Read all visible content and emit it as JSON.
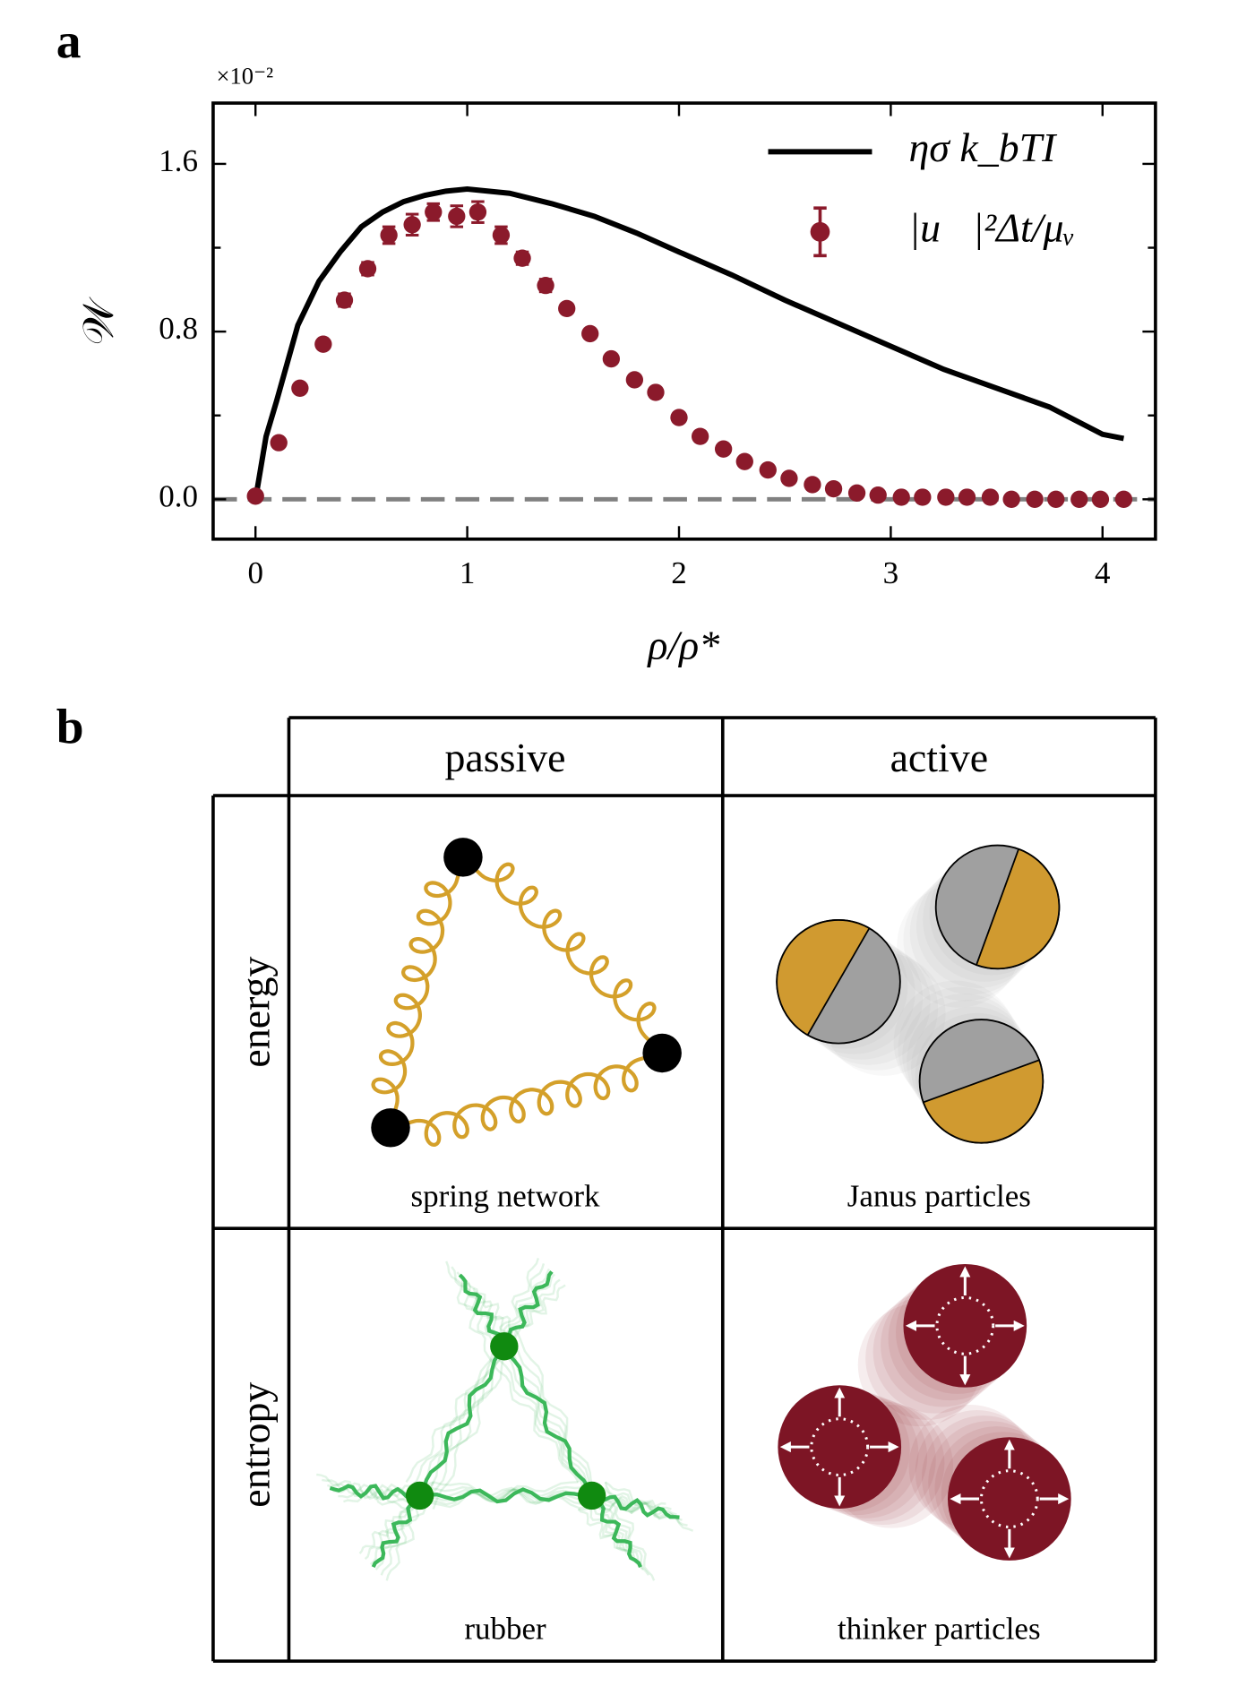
{
  "chart_data": {
    "type": "line",
    "panel_label": "a",
    "multiplier_label": "×10⁻²",
    "xlabel": "ρ/ρ*",
    "ylabel": "𝒲",
    "xlim": [
      -0.2,
      4.25
    ],
    "ylim": [
      -0.19,
      1.89
    ],
    "xticks": [
      0,
      1,
      2,
      3,
      4
    ],
    "yticks": [
      {
        "value": 0,
        "label": "0.0"
      },
      0.8,
      1.6
    ],
    "yminor": [
      0.4,
      1.2
    ],
    "legend": "upper right",
    "reference_line": {
      "value": 0,
      "color": "#808080",
      "style": "dashed"
    },
    "series": [
      {
        "name": "ησ k_bTI",
        "type": "line",
        "color": "#000000",
        "x": [
          0,
          0.05,
          0.1,
          0.2,
          0.3,
          0.4,
          0.5,
          0.6,
          0.7,
          0.8,
          0.9,
          1.0,
          1.2,
          1.4,
          1.6,
          1.8,
          2.0,
          2.25,
          2.5,
          2.75,
          3.0,
          3.25,
          3.5,
          3.75,
          4.0,
          4.1
        ],
        "values": [
          0,
          0.3,
          0.47,
          0.83,
          1.04,
          1.18,
          1.3,
          1.37,
          1.42,
          1.45,
          1.47,
          1.48,
          1.46,
          1.41,
          1.35,
          1.27,
          1.18,
          1.07,
          0.95,
          0.84,
          0.73,
          0.62,
          0.53,
          0.44,
          0.31,
          0.29
        ]
      },
      {
        "name": "|u⃗|²Δt/μᵥ",
        "type": "errorbar",
        "color": "#8b1a2b",
        "x": [
          0,
          0.11,
          0.21,
          0.32,
          0.42,
          0.53,
          0.63,
          0.74,
          0.84,
          0.95,
          1.05,
          1.16,
          1.26,
          1.37,
          1.47,
          1.58,
          1.68,
          1.79,
          1.89,
          2.0,
          2.1,
          2.21,
          2.31,
          2.42,
          2.52,
          2.63,
          2.73,
          2.84,
          2.94,
          3.05,
          3.15,
          3.26,
          3.36,
          3.47,
          3.57,
          3.68,
          3.78,
          3.89,
          3.99,
          4.1
        ],
        "values": [
          0.015,
          0.27,
          0.53,
          0.74,
          0.95,
          1.1,
          1.26,
          1.31,
          1.37,
          1.35,
          1.37,
          1.26,
          1.15,
          1.02,
          0.91,
          0.79,
          0.67,
          0.57,
          0.51,
          0.39,
          0.3,
          0.24,
          0.18,
          0.14,
          0.1,
          0.07,
          0.05,
          0.03,
          0.02,
          0.01,
          0.01,
          0.01,
          0.01,
          0.01,
          0,
          0,
          0,
          0,
          0,
          0
        ],
        "errors": [
          0.02,
          0.02,
          0.02,
          0.02,
          0.03,
          0.03,
          0.04,
          0.05,
          0.04,
          0.05,
          0.05,
          0.04,
          0.03,
          0.03,
          0.02,
          0.02,
          0.02,
          0.02,
          0.02,
          0.02,
          0.01,
          0.01,
          0.01,
          0.01,
          0.01,
          0.01,
          0.01,
          0.01,
          0.01,
          0.01,
          0.01,
          0.01,
          0.01,
          0.01,
          0.01,
          0.01,
          0.01,
          0.01,
          0.01,
          0.01
        ]
      }
    ]
  },
  "panel_b": {
    "label": "b",
    "columns": [
      "passive",
      "active"
    ],
    "rows": [
      {
        "label": "energy",
        "cells": [
          "spring network",
          "Janus particles"
        ]
      },
      {
        "label": "entropy",
        "cells": [
          "rubber",
          "thinker particles"
        ]
      }
    ]
  }
}
